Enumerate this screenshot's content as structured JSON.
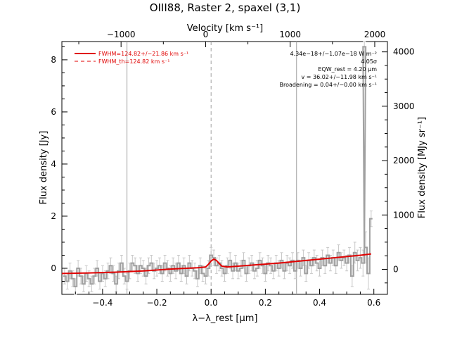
{
  "chart_data": {
    "type": "line",
    "title": "OIII88, Raster 2, spaxel (3,1)",
    "xlabel": "λ−λ_rest [μm]",
    "ylabel": "Flux density [Jy]",
    "top_xlabel": "Velocity [km s⁻¹]",
    "right_ylabel": "Flux density [MJy sr⁻¹]",
    "xlim": [
      -0.55,
      0.65
    ],
    "ylim": [
      -1.0,
      8.7
    ],
    "right_ylim": [
      -460,
      4190
    ],
    "top_xlim": [
      -1700,
      2150
    ],
    "x_ticks": [
      "−0.4",
      "−0.2",
      "0.0",
      "0.2",
      "0.4",
      "0.6"
    ],
    "x_tick_values": [
      -0.4,
      -0.2,
      0.0,
      0.2,
      0.4,
      0.6
    ],
    "y_ticks": [
      "0",
      "2",
      "4",
      "6",
      "8"
    ],
    "y_tick_values": [
      0,
      2,
      4,
      6,
      8
    ],
    "right_y_ticks": [
      "0",
      "1000",
      "2000",
      "3000",
      "4000"
    ],
    "right_y_tick_values": [
      0,
      1000,
      2000,
      3000,
      4000
    ],
    "top_x_ticks": [
      "−1000",
      "0",
      "1000",
      "2000"
    ],
    "top_x_tick_values": [
      -1000,
      0,
      1000,
      2000
    ],
    "vertical_lines": [
      {
        "x": -0.31,
        "style": "solid"
      },
      {
        "x": 0.0,
        "style": "dashed"
      },
      {
        "x": 0.315,
        "style": "solid"
      }
    ],
    "legend": [
      {
        "label": "FWHM=124.82+/−21.86 km s⁻¹",
        "color": "#e00000",
        "style": "solid"
      },
      {
        "label": "FWHM_th=124.82 km s⁻¹",
        "color": "#e00000",
        "style": "dashed"
      }
    ],
    "annotations": [
      "4.34e−18+/−1.07e−18 W m⁻²",
      "4.05σ",
      "EQW_rest = 4.20 μm",
      "v = 36.02+/−11.98 km s⁻¹",
      "Broadening = 0.04+/−0.00 km s⁻¹"
    ],
    "series": [
      {
        "kind": "data",
        "color": "#a0a0a0",
        "x": [
          -0.54,
          -0.53,
          -0.52,
          -0.51,
          -0.5,
          -0.49,
          -0.48,
          -0.47,
          -0.46,
          -0.45,
          -0.44,
          -0.43,
          -0.42,
          -0.41,
          -0.4,
          -0.39,
          -0.38,
          -0.37,
          -0.36,
          -0.35,
          -0.34,
          -0.33,
          -0.32,
          -0.31,
          -0.3,
          -0.29,
          -0.28,
          -0.27,
          -0.26,
          -0.25,
          -0.24,
          -0.23,
          -0.22,
          -0.21,
          -0.2,
          -0.19,
          -0.18,
          -0.17,
          -0.16,
          -0.15,
          -0.14,
          -0.13,
          -0.12,
          -0.11,
          -0.1,
          -0.09,
          -0.08,
          -0.07,
          -0.06,
          -0.05,
          -0.04,
          -0.03,
          -0.02,
          -0.01,
          0.0,
          0.01,
          0.02,
          0.03,
          0.04,
          0.05,
          0.06,
          0.07,
          0.08,
          0.09,
          0.1,
          0.11,
          0.12,
          0.13,
          0.14,
          0.15,
          0.16,
          0.17,
          0.18,
          0.19,
          0.2,
          0.21,
          0.22,
          0.23,
          0.24,
          0.25,
          0.26,
          0.27,
          0.28,
          0.29,
          0.3,
          0.31,
          0.32,
          0.33,
          0.34,
          0.35,
          0.36,
          0.37,
          0.38,
          0.39,
          0.4,
          0.41,
          0.42,
          0.43,
          0.44,
          0.45,
          0.46,
          0.47,
          0.48,
          0.49,
          0.5,
          0.51,
          0.52,
          0.53,
          0.54,
          0.55,
          0.56,
          0.565,
          0.57,
          0.58,
          0.59
        ],
        "y": [
          -0.3,
          -0.5,
          -0.1,
          -0.4,
          -0.7,
          0.0,
          -0.3,
          -0.6,
          -0.2,
          -0.4,
          -0.6,
          -0.3,
          0.0,
          -0.5,
          -0.2,
          -0.4,
          -0.1,
          0.1,
          -0.2,
          -0.6,
          -0.1,
          0.2,
          -0.3,
          -0.5,
          -0.1,
          0.2,
          0.1,
          -0.2,
          0.1,
          0.0,
          -0.3,
          0.1,
          0.2,
          -0.1,
          0.0,
          0.1,
          -0.2,
          0.2,
          0.0,
          -0.2,
          0.1,
          -0.1,
          0.2,
          -0.2,
          0.1,
          -0.3,
          0.2,
          0.0,
          -0.1,
          -0.4,
          0.1,
          -0.2,
          -0.3,
          0.0,
          0.5,
          0.4,
          0.1,
          0.2,
          0.0,
          -0.2,
          0.1,
          0.3,
          -0.1,
          0.2,
          -0.1,
          0.0,
          0.3,
          -0.2,
          0.1,
          0.2,
          -0.1,
          0.0,
          0.3,
          0.1,
          -0.2,
          0.2,
          0.1,
          -0.1,
          0.2,
          0.0,
          0.3,
          -0.1,
          0.2,
          0.1,
          0.3,
          -0.1,
          0.3,
          0.0,
          0.4,
          -0.2,
          0.3,
          0.1,
          0.4,
          0.2,
          0.0,
          0.4,
          0.1,
          0.5,
          0.2,
          0.4,
          0.1,
          0.6,
          0.3,
          0.4,
          0.2,
          0.5,
          -0.3,
          0.6,
          0.3,
          0.4,
          0.2,
          8.5,
          0.8,
          -0.2,
          1.9
        ],
        "err": [
          0.3,
          0.3,
          0.3,
          0.3,
          0.3,
          0.3,
          0.3,
          0.3,
          0.3,
          0.3,
          0.3,
          0.3,
          0.3,
          0.3,
          0.3,
          0.3,
          0.3,
          0.3,
          0.3,
          0.3,
          0.3,
          0.3,
          0.3,
          0.3,
          0.3,
          0.3,
          0.3,
          0.3,
          0.3,
          0.3,
          0.3,
          0.3,
          0.3,
          0.3,
          0.3,
          0.3,
          0.3,
          0.3,
          0.3,
          0.3,
          0.3,
          0.3,
          0.3,
          0.3,
          0.3,
          0.3,
          0.3,
          0.3,
          0.3,
          0.3,
          0.3,
          0.3,
          0.3,
          0.3,
          0.3,
          0.3,
          0.3,
          0.3,
          0.3,
          0.3,
          0.3,
          0.3,
          0.3,
          0.3,
          0.3,
          0.3,
          0.3,
          0.3,
          0.3,
          0.3,
          0.3,
          0.3,
          0.3,
          0.3,
          0.3,
          0.3,
          0.3,
          0.3,
          0.3,
          0.3,
          0.3,
          0.3,
          0.3,
          0.3,
          0.3,
          0.3,
          0.3,
          0.3,
          0.3,
          0.3,
          0.3,
          0.3,
          0.3,
          0.3,
          0.3,
          0.3,
          0.3,
          0.3,
          0.3,
          0.3,
          0.3,
          0.3,
          0.3,
          0.3,
          0.3,
          0.3,
          0.4,
          0.4,
          0.4,
          0.4,
          0.5,
          0.6,
          0.6,
          0.6,
          0.3
        ]
      },
      {
        "kind": "fit",
        "color": "#e00000",
        "x": [
          -0.55,
          -0.45,
          -0.35,
          -0.25,
          -0.15,
          -0.05,
          -0.02,
          -0.01,
          0.0,
          0.01,
          0.02,
          0.03,
          0.04,
          0.06,
          0.15,
          0.25,
          0.35,
          0.45,
          0.55,
          0.59
        ],
        "y": [
          -0.2,
          -0.18,
          -0.15,
          -0.1,
          -0.03,
          0.02,
          0.05,
          0.15,
          0.28,
          0.35,
          0.3,
          0.18,
          0.08,
          0.05,
          0.12,
          0.2,
          0.3,
          0.4,
          0.5,
          0.55
        ]
      }
    ]
  }
}
